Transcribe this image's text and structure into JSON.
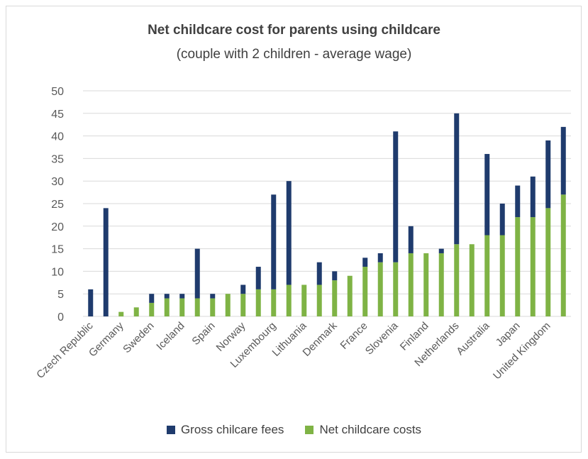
{
  "chart_data": {
    "type": "bar",
    "stacked": true,
    "title": "Net childcare cost for parents using childcare",
    "subtitle": "(couple with 2 children - average wage)",
    "xlabel": "",
    "ylabel": "",
    "ylim": [
      0,
      50
    ],
    "yticks": [
      0,
      5,
      10,
      15,
      20,
      25,
      30,
      35,
      40,
      45,
      50
    ],
    "grid": true,
    "legend_position": "bottom",
    "categories": [
      "Czech Republic",
      "",
      "Germany",
      "",
      "Sweden",
      "",
      "Iceland",
      "",
      "Spain",
      "",
      "Norway",
      "",
      "Luxembourg",
      "",
      "Lithuania",
      "",
      "Denmark",
      "",
      "France",
      "",
      "Slovenia",
      "",
      "Finland",
      "",
      "Netherlands",
      "",
      "Australia",
      "",
      "Japan",
      "",
      "United Kingdom",
      ""
    ],
    "series": [
      {
        "name": "Net childcare costs",
        "color": "#7fb345",
        "values": [
          0,
          0,
          1,
          2,
          3,
          4,
          4,
          4,
          4,
          5,
          5,
          6,
          6,
          7,
          7,
          7,
          8,
          9,
          11,
          12,
          12,
          14,
          14,
          14,
          16,
          16,
          18,
          18,
          22,
          22,
          24,
          27
        ]
      },
      {
        "name": "Gross chilcare fees",
        "color": "#1f3b6d",
        "values": [
          6,
          24,
          0,
          0,
          2,
          1,
          1,
          11,
          1,
          0,
          2,
          5,
          21,
          23,
          0,
          5,
          2,
          0,
          2,
          2,
          29,
          6,
          0,
          1,
          29,
          0,
          18,
          7,
          7,
          9,
          15,
          15
        ]
      }
    ],
    "legend_order": [
      "Gross chilcare fees",
      "Net childcare costs"
    ]
  }
}
